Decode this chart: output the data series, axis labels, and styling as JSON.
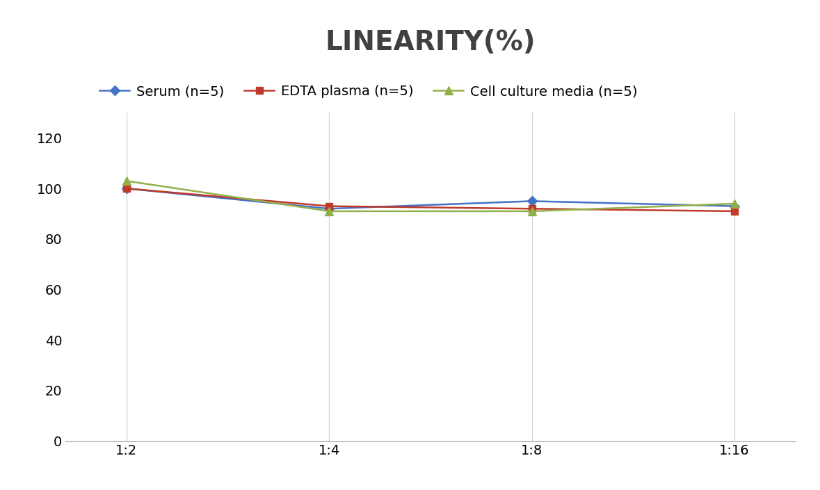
{
  "title": "LINEARITY(%)",
  "title_fontsize": 28,
  "title_fontweight": "bold",
  "title_color": "#404040",
  "x_labels": [
    "1:2",
    "1:4",
    "1:8",
    "1:16"
  ],
  "x_positions": [
    0,
    1,
    2,
    3
  ],
  "series": [
    {
      "label": "Serum (n=5)",
      "values": [
        100,
        92,
        95,
        93
      ],
      "color": "#4472C4",
      "marker": "D",
      "markersize": 7,
      "linewidth": 1.8
    },
    {
      "label": "EDTA plasma (n=5)",
      "values": [
        100,
        93,
        92,
        91
      ],
      "color": "#C0392B",
      "marker": "s",
      "markersize": 7,
      "linewidth": 1.8
    },
    {
      "label": "Cell culture media (n=5)",
      "values": [
        103,
        91,
        91,
        94
      ],
      "color": "#92B04A",
      "marker": "^",
      "markersize": 8,
      "linewidth": 1.8
    }
  ],
  "ylim": [
    0,
    130
  ],
  "yticks": [
    0,
    20,
    40,
    60,
    80,
    100,
    120
  ],
  "grid_color": "#D3D3D3",
  "background_color": "#FFFFFF",
  "legend_fontsize": 14,
  "axis_fontsize": 14
}
